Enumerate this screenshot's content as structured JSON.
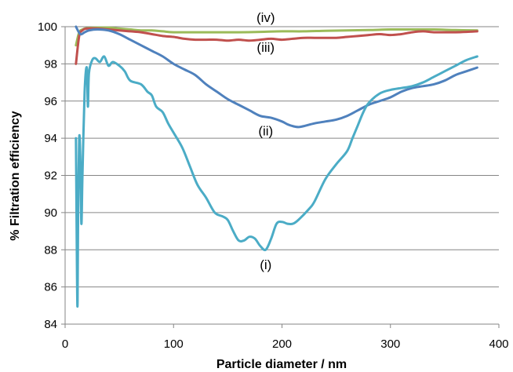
{
  "chart_data": {
    "type": "line",
    "title": "",
    "xlabel": "Particle diameter / nm",
    "ylabel": "% Filtration efficiency",
    "xlim": [
      0,
      400
    ],
    "ylim": [
      84,
      100
    ],
    "x_ticks": [
      0,
      100,
      200,
      300,
      400
    ],
    "y_ticks": [
      84,
      86,
      88,
      90,
      92,
      94,
      96,
      98,
      100
    ],
    "grid": "horizontal",
    "legend": "none",
    "series": [
      {
        "name": "(i)",
        "color": "#4bacc6",
        "points": [
          [
            10,
            94
          ],
          [
            11,
            86.5
          ],
          [
            11.5,
            85.2
          ],
          [
            12,
            90
          ],
          [
            13,
            94
          ],
          [
            14,
            93
          ],
          [
            15,
            89.4
          ],
          [
            16,
            92
          ],
          [
            18,
            96.5
          ],
          [
            20,
            97.8
          ],
          [
            21,
            95.7
          ],
          [
            22,
            97.5
          ],
          [
            25,
            98.2
          ],
          [
            28,
            98.3
          ],
          [
            32,
            98.1
          ],
          [
            36,
            98.4
          ],
          [
            40,
            97.9
          ],
          [
            44,
            98.1
          ],
          [
            50,
            97.9
          ],
          [
            55,
            97.6
          ],
          [
            60,
            97.1
          ],
          [
            70,
            96.9
          ],
          [
            76,
            96.5
          ],
          [
            80,
            96.3
          ],
          [
            84,
            95.7
          ],
          [
            90,
            95.4
          ],
          [
            95,
            94.8
          ],
          [
            100,
            94.3
          ],
          [
            108,
            93.5
          ],
          [
            115,
            92.5
          ],
          [
            122,
            91.5
          ],
          [
            130,
            90.8
          ],
          [
            138,
            90.0
          ],
          [
            145,
            89.8
          ],
          [
            150,
            89.6
          ],
          [
            155,
            89.0
          ],
          [
            160,
            88.5
          ],
          [
            165,
            88.5
          ],
          [
            170,
            88.7
          ],
          [
            175,
            88.6
          ],
          [
            180,
            88.2
          ],
          [
            185,
            88.0
          ],
          [
            190,
            88.6
          ],
          [
            195,
            89.4
          ],
          [
            200,
            89.5
          ],
          [
            205,
            89.4
          ],
          [
            210,
            89.4
          ],
          [
            215,
            89.6
          ],
          [
            225,
            90.2
          ],
          [
            230,
            90.6
          ],
          [
            240,
            91.8
          ],
          [
            250,
            92.6
          ],
          [
            260,
            93.3
          ],
          [
            265,
            94.0
          ],
          [
            270,
            94.7
          ],
          [
            275,
            95.4
          ],
          [
            280,
            95.9
          ],
          [
            290,
            96.4
          ],
          [
            300,
            96.6
          ],
          [
            310,
            96.7
          ],
          [
            320,
            96.8
          ],
          [
            330,
            97.0
          ],
          [
            340,
            97.3
          ],
          [
            350,
            97.6
          ],
          [
            360,
            97.9
          ],
          [
            370,
            98.2
          ],
          [
            380,
            98.4
          ]
        ]
      },
      {
        "name": "(ii)",
        "color": "#4f81bd",
        "points": [
          [
            10,
            100
          ],
          [
            14,
            99.6
          ],
          [
            18,
            99.7
          ],
          [
            22,
            99.8
          ],
          [
            30,
            99.85
          ],
          [
            40,
            99.8
          ],
          [
            50,
            99.6
          ],
          [
            60,
            99.3
          ],
          [
            70,
            99.0
          ],
          [
            80,
            98.7
          ],
          [
            90,
            98.4
          ],
          [
            100,
            98.0
          ],
          [
            110,
            97.7
          ],
          [
            120,
            97.4
          ],
          [
            130,
            96.9
          ],
          [
            140,
            96.5
          ],
          [
            150,
            96.1
          ],
          [
            160,
            95.8
          ],
          [
            170,
            95.5
          ],
          [
            180,
            95.2
          ],
          [
            190,
            95.1
          ],
          [
            200,
            94.9
          ],
          [
            205,
            94.75
          ],
          [
            210,
            94.65
          ],
          [
            215,
            94.6
          ],
          [
            220,
            94.65
          ],
          [
            230,
            94.8
          ],
          [
            240,
            94.9
          ],
          [
            250,
            95.0
          ],
          [
            260,
            95.2
          ],
          [
            270,
            95.5
          ],
          [
            280,
            95.8
          ],
          [
            290,
            96.0
          ],
          [
            300,
            96.2
          ],
          [
            310,
            96.5
          ],
          [
            320,
            96.7
          ],
          [
            330,
            96.8
          ],
          [
            340,
            96.9
          ],
          [
            350,
            97.1
          ],
          [
            360,
            97.4
          ],
          [
            370,
            97.6
          ],
          [
            380,
            97.8
          ]
        ]
      },
      {
        "name": "(iii)",
        "color": "#c0504d",
        "points": [
          [
            10,
            98.0
          ],
          [
            13,
            99.5
          ],
          [
            16,
            99.8
          ],
          [
            20,
            99.9
          ],
          [
            30,
            99.9
          ],
          [
            40,
            99.85
          ],
          [
            50,
            99.8
          ],
          [
            60,
            99.75
          ],
          [
            70,
            99.7
          ],
          [
            80,
            99.6
          ],
          [
            90,
            99.5
          ],
          [
            100,
            99.45
          ],
          [
            110,
            99.35
          ],
          [
            120,
            99.3
          ],
          [
            130,
            99.3
          ],
          [
            140,
            99.3
          ],
          [
            150,
            99.25
          ],
          [
            160,
            99.3
          ],
          [
            170,
            99.25
          ],
          [
            180,
            99.3
          ],
          [
            190,
            99.35
          ],
          [
            200,
            99.3
          ],
          [
            210,
            99.35
          ],
          [
            220,
            99.4
          ],
          [
            230,
            99.4
          ],
          [
            240,
            99.4
          ],
          [
            250,
            99.4
          ],
          [
            260,
            99.45
          ],
          [
            270,
            99.5
          ],
          [
            280,
            99.55
          ],
          [
            290,
            99.6
          ],
          [
            300,
            99.55
          ],
          [
            310,
            99.6
          ],
          [
            320,
            99.7
          ],
          [
            330,
            99.75
          ],
          [
            340,
            99.7
          ],
          [
            350,
            99.7
          ],
          [
            360,
            99.7
          ],
          [
            370,
            99.72
          ],
          [
            380,
            99.75
          ]
        ]
      },
      {
        "name": "(iv)",
        "color": "#9bbb59",
        "points": [
          [
            10,
            99.0
          ],
          [
            13,
            99.7
          ],
          [
            16,
            99.85
          ],
          [
            20,
            99.92
          ],
          [
            30,
            99.95
          ],
          [
            40,
            99.95
          ],
          [
            50,
            99.9
          ],
          [
            60,
            99.85
          ],
          [
            70,
            99.8
          ],
          [
            80,
            99.8
          ],
          [
            90,
            99.75
          ],
          [
            100,
            99.7
          ],
          [
            120,
            99.7
          ],
          [
            140,
            99.7
          ],
          [
            160,
            99.7
          ],
          [
            180,
            99.72
          ],
          [
            200,
            99.75
          ],
          [
            220,
            99.75
          ],
          [
            240,
            99.78
          ],
          [
            260,
            99.8
          ],
          [
            280,
            99.82
          ],
          [
            300,
            99.85
          ],
          [
            320,
            99.85
          ],
          [
            340,
            99.85
          ],
          [
            360,
            99.82
          ],
          [
            380,
            99.8
          ]
        ]
      }
    ],
    "annotations": [
      {
        "text": "(i)",
        "x": 185,
        "y": 87.2
      },
      {
        "text": "(ii)",
        "x": 185,
        "y": 94.4
      },
      {
        "text": "(iii)",
        "x": 185,
        "y": 98.9
      },
      {
        "text": "(iv)",
        "x": 185,
        "y": 100.5
      }
    ]
  }
}
